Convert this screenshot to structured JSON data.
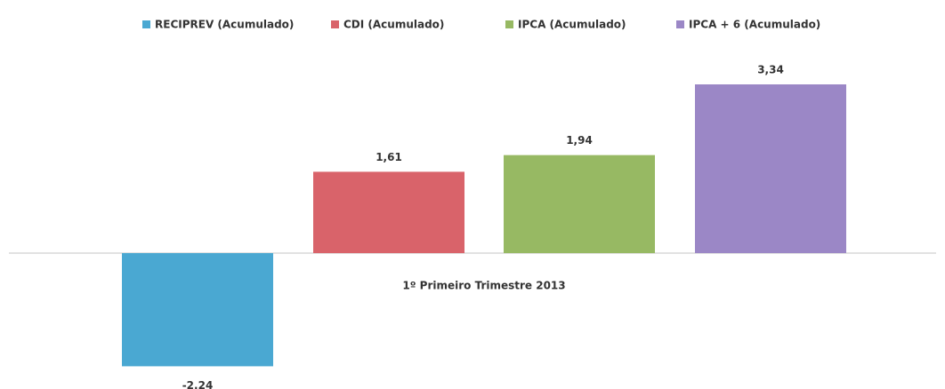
{
  "chart_data": {
    "type": "bar",
    "categories": [
      "1º Primeiro Trimestre 2013"
    ],
    "series": [
      {
        "name": "RECIPREV (Acumulado)",
        "color": "#4aa8d2",
        "values": [
          -2.24
        ],
        "value_labels": [
          "-2.24"
        ]
      },
      {
        "name": "CDI (Acumulado)",
        "color": "#d9636a",
        "values": [
          1.61
        ],
        "value_labels": [
          "1,61"
        ]
      },
      {
        "name": "IPCA (Acumulado)",
        "color": "#97b963",
        "values": [
          1.94
        ],
        "value_labels": [
          "1,94"
        ]
      },
      {
        "name": "IPCA + 6 (Acumulado)",
        "color": "#9b87c6",
        "values": [
          3.34
        ],
        "value_labels": [
          "3,34"
        ]
      }
    ],
    "legend": "top"
  }
}
